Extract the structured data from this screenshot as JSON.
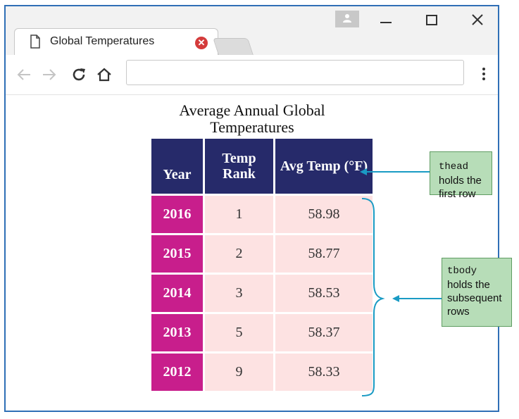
{
  "browser": {
    "tab_title": "Global Temperatures",
    "address_value": "",
    "icons": {
      "page": "page-icon",
      "close": "close-tab-icon",
      "back": "back-arrow-icon",
      "forward": "forward-arrow-icon",
      "reload": "reload-icon",
      "home": "home-icon",
      "menu": "kebab-menu-icon",
      "minimize": "minimize-icon",
      "maximize": "maximize-icon",
      "window_close": "close-icon",
      "profile": "profile-icon"
    }
  },
  "table": {
    "caption": "Average Annual Global Temperatures",
    "headers": [
      "Year",
      "Temp Rank",
      "Avg Temp (°F)"
    ],
    "rows": [
      {
        "year": "2016",
        "rank": "1",
        "avg": "58.98"
      },
      {
        "year": "2015",
        "rank": "2",
        "avg": "58.77"
      },
      {
        "year": "2014",
        "rank": "3",
        "avg": "58.53"
      },
      {
        "year": "2013",
        "rank": "5",
        "avg": "58.37"
      },
      {
        "year": "2012",
        "rank": "9",
        "avg": "58.33"
      }
    ]
  },
  "annotations": {
    "thead": {
      "code": "thead",
      "text": " holds the first row"
    },
    "tbody": {
      "code": "tbody",
      "text": "holds the subsequent rows"
    }
  },
  "colors": {
    "header_bg": "#262a6a",
    "year_bg": "#c81e8c",
    "cell_bg": "#fde2e2",
    "callout_bg": "#b7ddb8",
    "arrow": "#1a9bc4",
    "window_border": "#2f6fb6"
  }
}
